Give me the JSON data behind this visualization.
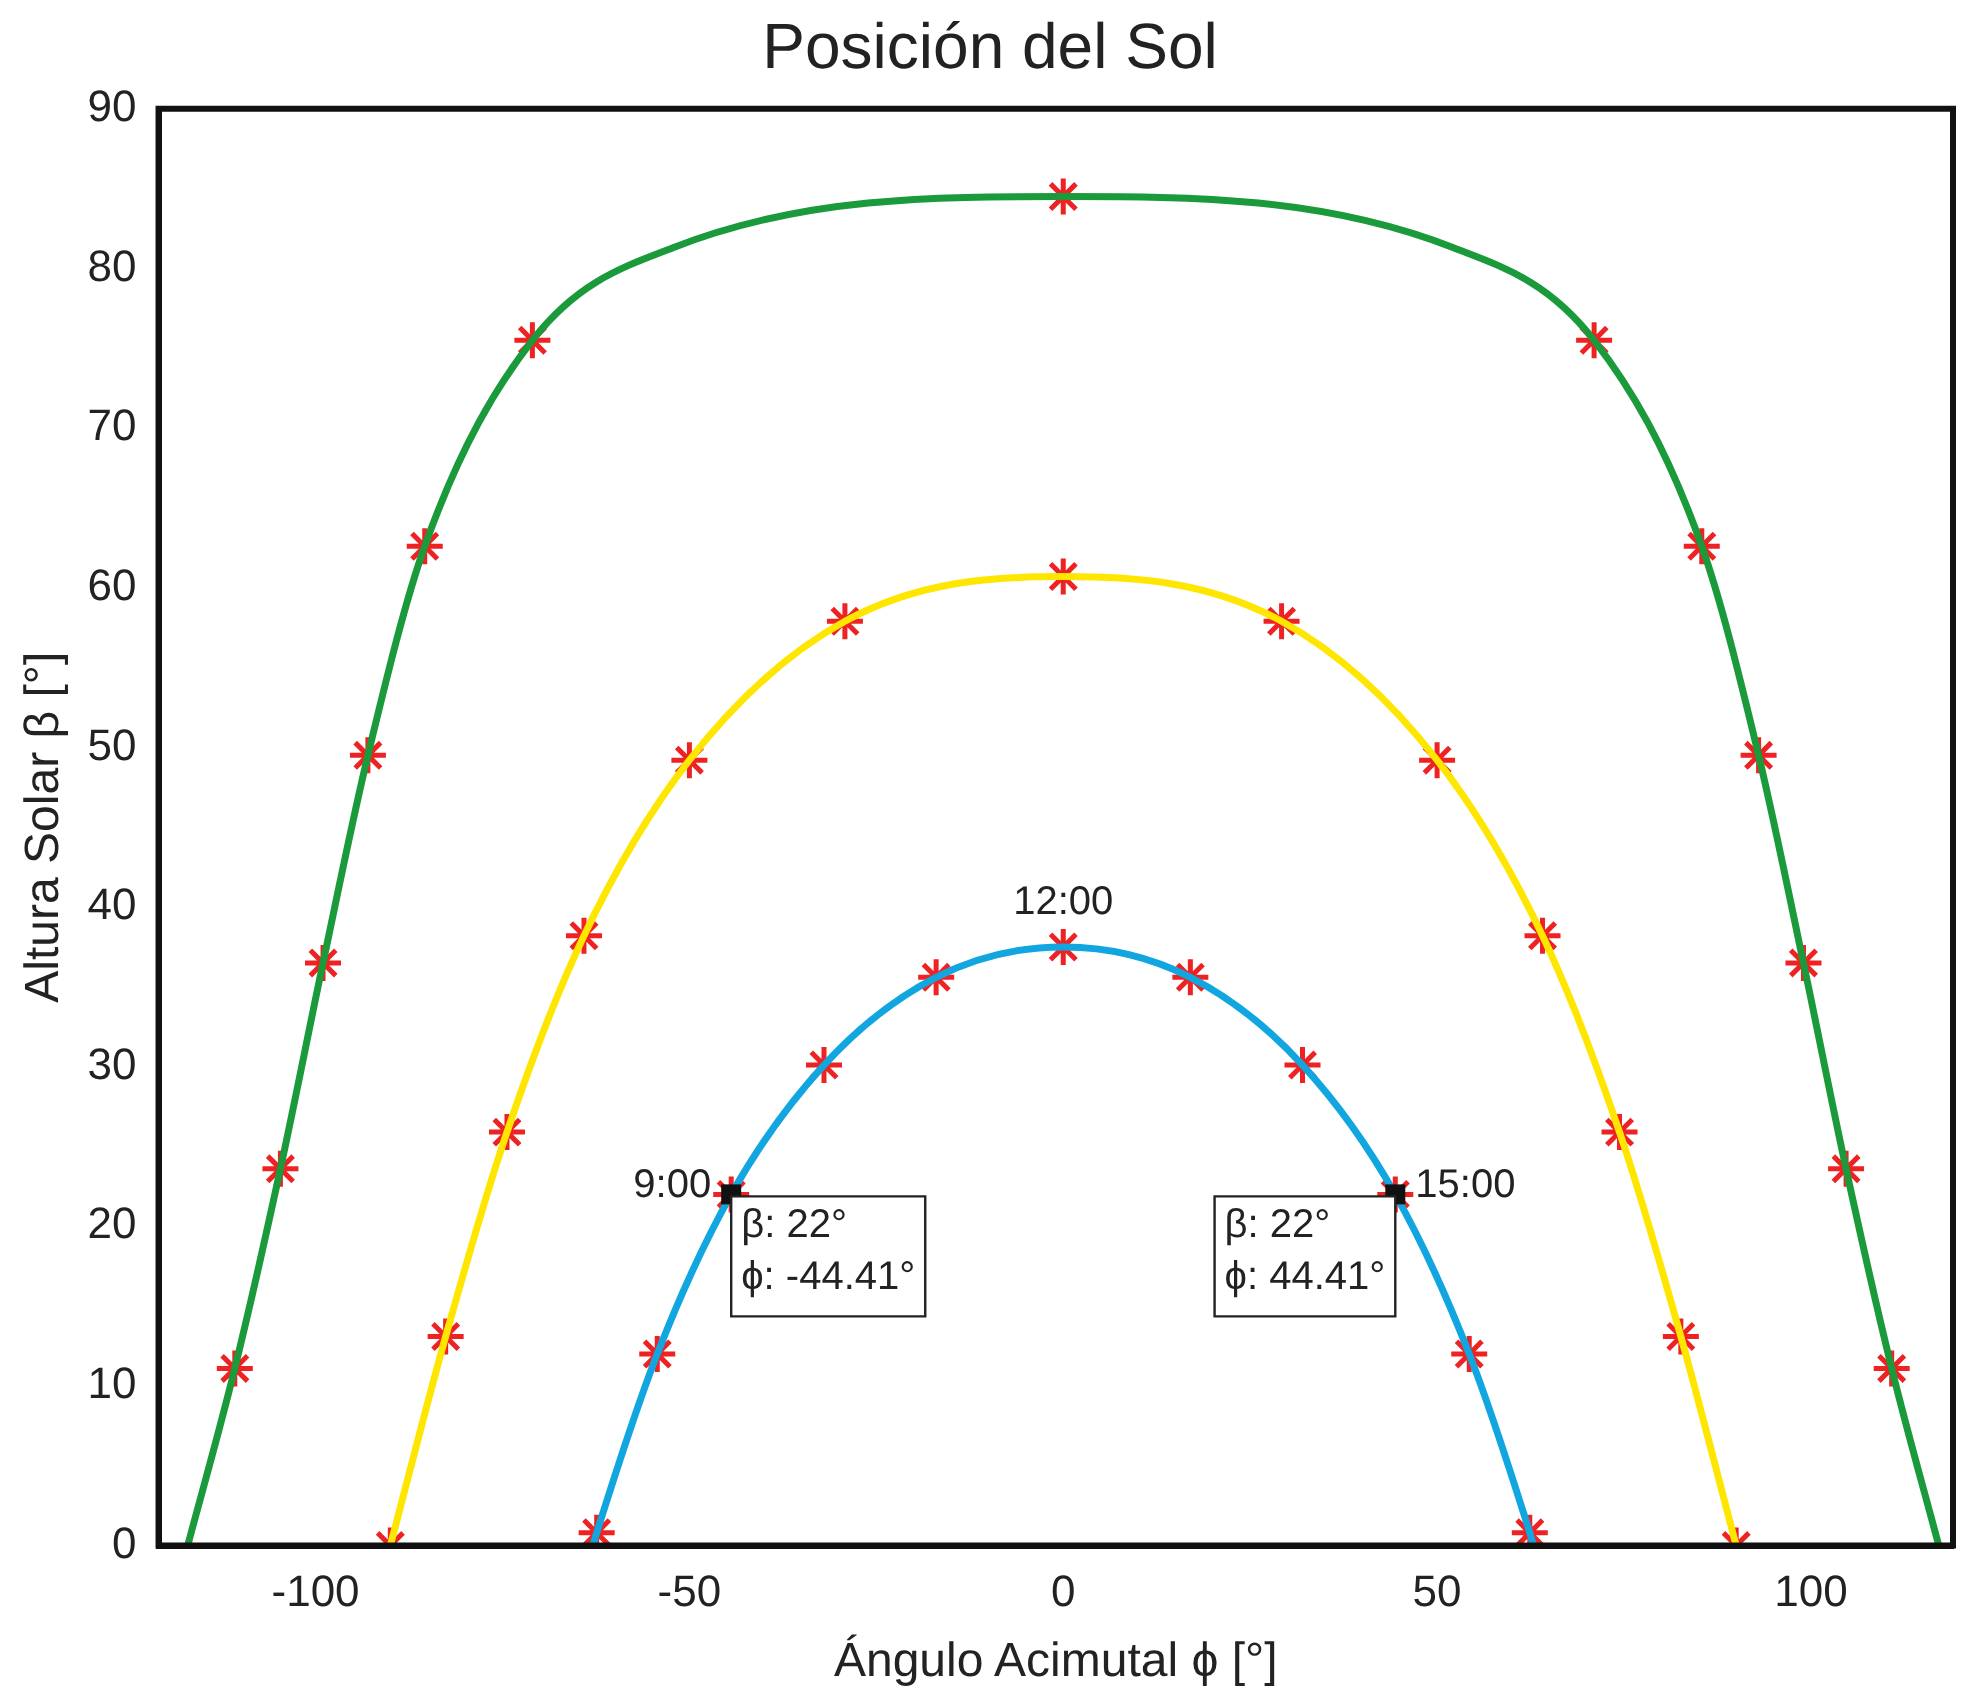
{
  "chart_data": {
    "type": "line",
    "title": "Posición del Sol",
    "xlabel": "Ángulo Acimutal ϕ [°]",
    "ylabel": "Altura Solar β [°]",
    "xlim": [
      -121,
      119
    ],
    "ylim": [
      0,
      90
    ],
    "xticks": [
      -100,
      -50,
      0,
      50,
      100
    ],
    "yticks": [
      0,
      10,
      20,
      30,
      40,
      50,
      60,
      70,
      80,
      90
    ],
    "series": [
      {
        "type": "line",
        "color": "#1a9a3a",
        "marker": "none",
        "line_style": "solid",
        "x": [
          -117.1,
          -110.8,
          -104.7,
          -99.0,
          -93.0,
          -85.4,
          -71.0,
          -52.2,
          0,
          52.2,
          71.0,
          85.4,
          93.0,
          99.0,
          104.7,
          110.8,
          117.1
        ],
        "values": [
          0,
          11.1,
          23.6,
          36.5,
          49.5,
          62.6,
          75.5,
          81.3,
          84.5,
          81.3,
          75.5,
          62.6,
          49.5,
          36.5,
          23.6,
          11.1,
          0
        ]
      },
      {
        "type": "line",
        "color": "#ffe600",
        "marker": "none",
        "line_style": "solid",
        "x": [
          -90,
          -82.6,
          -74.4,
          -64.1,
          -50.0,
          -29.2,
          0,
          29.2,
          50.0,
          64.1,
          74.4,
          82.6,
          90
        ],
        "values": [
          0,
          13.1,
          25.9,
          38.2,
          49.2,
          57.9,
          60.7,
          57.9,
          49.2,
          38.2,
          25.9,
          13.1,
          0
        ]
      },
      {
        "type": "line",
        "color": "#12a6e0",
        "marker": "none",
        "line_style": "solid",
        "x": [
          -62.9,
          -62.4,
          -54.3,
          -44.41,
          -32.0,
          -17.0,
          0,
          17.0,
          32.0,
          44.41,
          54.3,
          62.4,
          62.9
        ],
        "values": [
          0,
          0.8,
          12.0,
          22,
          30.1,
          35.6,
          37.5,
          35.6,
          30.1,
          22,
          12.0,
          0.8,
          0
        ]
      },
      {
        "type": "scatter",
        "color": "#ee2222",
        "marker": "cross",
        "x": [
          -110.8,
          -104.7,
          -99.0,
          -93.0,
          -85.4,
          -71.0,
          0,
          71.0,
          85.4,
          93.0,
          99.0,
          104.7,
          110.8,
          -90,
          -82.6,
          -74.4,
          -64.1,
          -50.0,
          -29.2,
          0,
          29.2,
          50.0,
          64.1,
          74.4,
          82.6,
          90,
          -62.4,
          -54.3,
          -44.41,
          -32.0,
          -17.0,
          0,
          17.0,
          32.0,
          44.41,
          54.3,
          62.4
        ],
        "values": [
          11.1,
          23.6,
          36.5,
          49.5,
          62.6,
          75.5,
          84.5,
          75.5,
          62.6,
          49.5,
          36.5,
          23.6,
          11.1,
          0,
          13.1,
          25.9,
          38.2,
          49.2,
          57.9,
          60.7,
          57.9,
          49.2,
          38.2,
          25.9,
          13.1,
          0,
          0.8,
          12.0,
          22,
          30.1,
          35.6,
          37.5,
          35.6,
          30.1,
          22,
          12.0,
          0.8
        ]
      }
    ],
    "annotations": [
      {
        "text": "12:00",
        "x": 0,
        "y": 37.5
      },
      {
        "text": "9:00",
        "x": -44.41,
        "y": 22
      },
      {
        "text": "15:00",
        "x": 44.41,
        "y": 22
      },
      {
        "text": "β: 22°\nϕ: -44.41°",
        "x": -44.41,
        "y": 22
      },
      {
        "text": "β: 22°\nϕ: 44.41°",
        "x": 44.41,
        "y": 22
      }
    ]
  }
}
